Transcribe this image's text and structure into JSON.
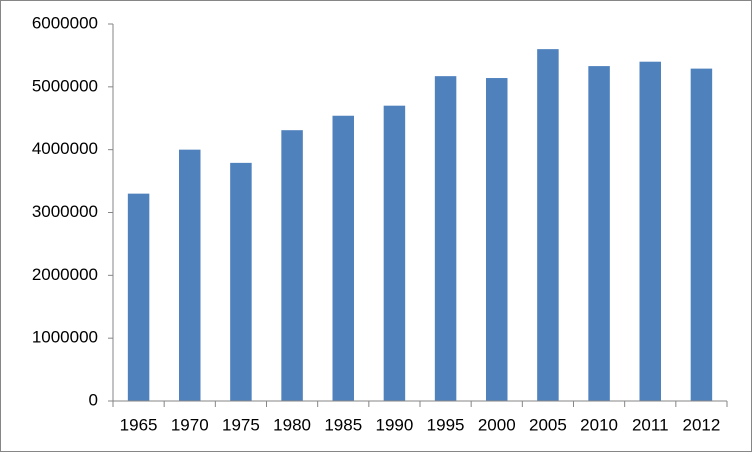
{
  "chart_data": {
    "type": "bar",
    "categories": [
      "1965",
      "1970",
      "1975",
      "1980",
      "1985",
      "1990",
      "1995",
      "2000",
      "2005",
      "2010",
      "2011",
      "2012"
    ],
    "values": [
      3300000,
      4000000,
      3790000,
      4310000,
      4540000,
      4700000,
      5170000,
      5140000,
      5600000,
      5330000,
      5400000,
      5290000
    ],
    "color": "#4f81bd",
    "ylim": [
      0,
      6000000
    ],
    "yticks": [
      0,
      1000000,
      2000000,
      3000000,
      4000000,
      5000000,
      6000000
    ],
    "grid": false
  }
}
